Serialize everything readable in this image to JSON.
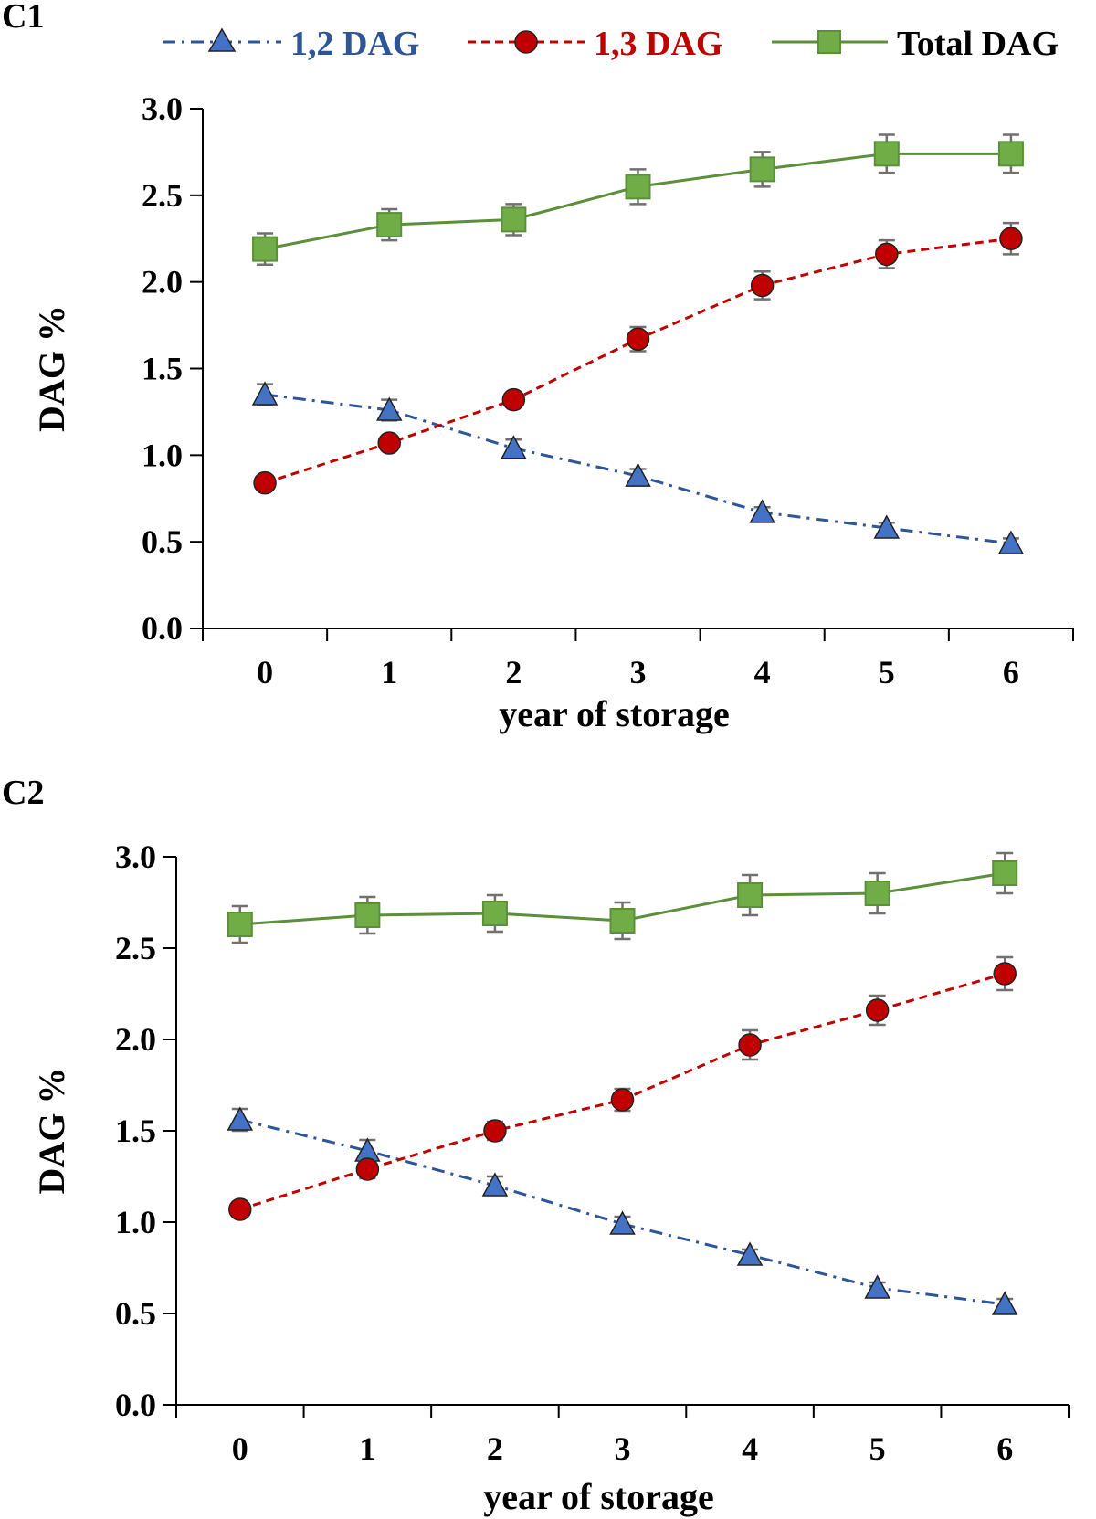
{
  "legend": [
    {
      "label": "1,2 DAG",
      "color": "#2e5597"
    },
    {
      "label": "1,3 DAG",
      "color": "#c00000"
    },
    {
      "label": "Total DAG",
      "color": "#000000"
    }
  ],
  "colors": {
    "dag12_fill": "#4472c4",
    "dag12_line": "#2e5597",
    "dag13_fill": "#c00000",
    "dag13_line": "#c00000",
    "total_fill": "#70ad47",
    "total_line": "#5b8f3a",
    "error_bar": "#707070"
  },
  "chart_data": [
    {
      "panel_label": "C1",
      "type": "line",
      "xlabel": "year of storage",
      "ylabel": "DAG %",
      "categories": [
        "0",
        "1",
        "2",
        "3",
        "4",
        "5",
        "6"
      ],
      "ylim": [
        0,
        3
      ],
      "yticks": [
        "0.0",
        "0.5",
        "1.0",
        "1.5",
        "2.0",
        "2.5",
        "3.0"
      ],
      "series": [
        {
          "name": "1,2 DAG",
          "values": [
            1.35,
            1.26,
            1.04,
            0.88,
            0.67,
            0.58,
            0.49
          ],
          "errors": [
            0.06,
            0.06,
            0.05,
            0.04,
            0.03,
            0.03,
            0.03
          ]
        },
        {
          "name": "1,3 DAG",
          "values": [
            0.84,
            1.07,
            1.32,
            1.67,
            1.98,
            2.16,
            2.25
          ],
          "errors": [
            0.03,
            0.04,
            0.04,
            0.07,
            0.08,
            0.08,
            0.09
          ]
        },
        {
          "name": "Total DAG",
          "values": [
            2.19,
            2.33,
            2.36,
            2.55,
            2.65,
            2.74,
            2.74
          ],
          "errors": [
            0.09,
            0.09,
            0.09,
            0.1,
            0.1,
            0.11,
            0.11
          ]
        }
      ]
    },
    {
      "panel_label": "C2",
      "type": "line",
      "xlabel": "year of storage",
      "ylabel": "DAG %",
      "categories": [
        "0",
        "1",
        "2",
        "3",
        "4",
        "5",
        "6"
      ],
      "ylim": [
        0,
        3
      ],
      "yticks": [
        "0.0",
        "0.5",
        "1.0",
        "1.5",
        "2.0",
        "2.5",
        "3.0"
      ],
      "series": [
        {
          "name": "1,2 DAG",
          "values": [
            1.56,
            1.39,
            1.2,
            0.99,
            0.82,
            0.64,
            0.55
          ],
          "errors": [
            0.06,
            0.06,
            0.05,
            0.04,
            0.03,
            0.03,
            0.03
          ]
        },
        {
          "name": "1,3 DAG",
          "values": [
            1.07,
            1.29,
            1.5,
            1.67,
            1.97,
            2.16,
            2.36
          ],
          "errors": [
            0.04,
            0.05,
            0.05,
            0.06,
            0.08,
            0.08,
            0.09
          ]
        },
        {
          "name": "Total DAG",
          "values": [
            2.63,
            2.68,
            2.69,
            2.65,
            2.79,
            2.8,
            2.91
          ],
          "errors": [
            0.1,
            0.1,
            0.1,
            0.1,
            0.11,
            0.11,
            0.11
          ]
        }
      ]
    }
  ]
}
